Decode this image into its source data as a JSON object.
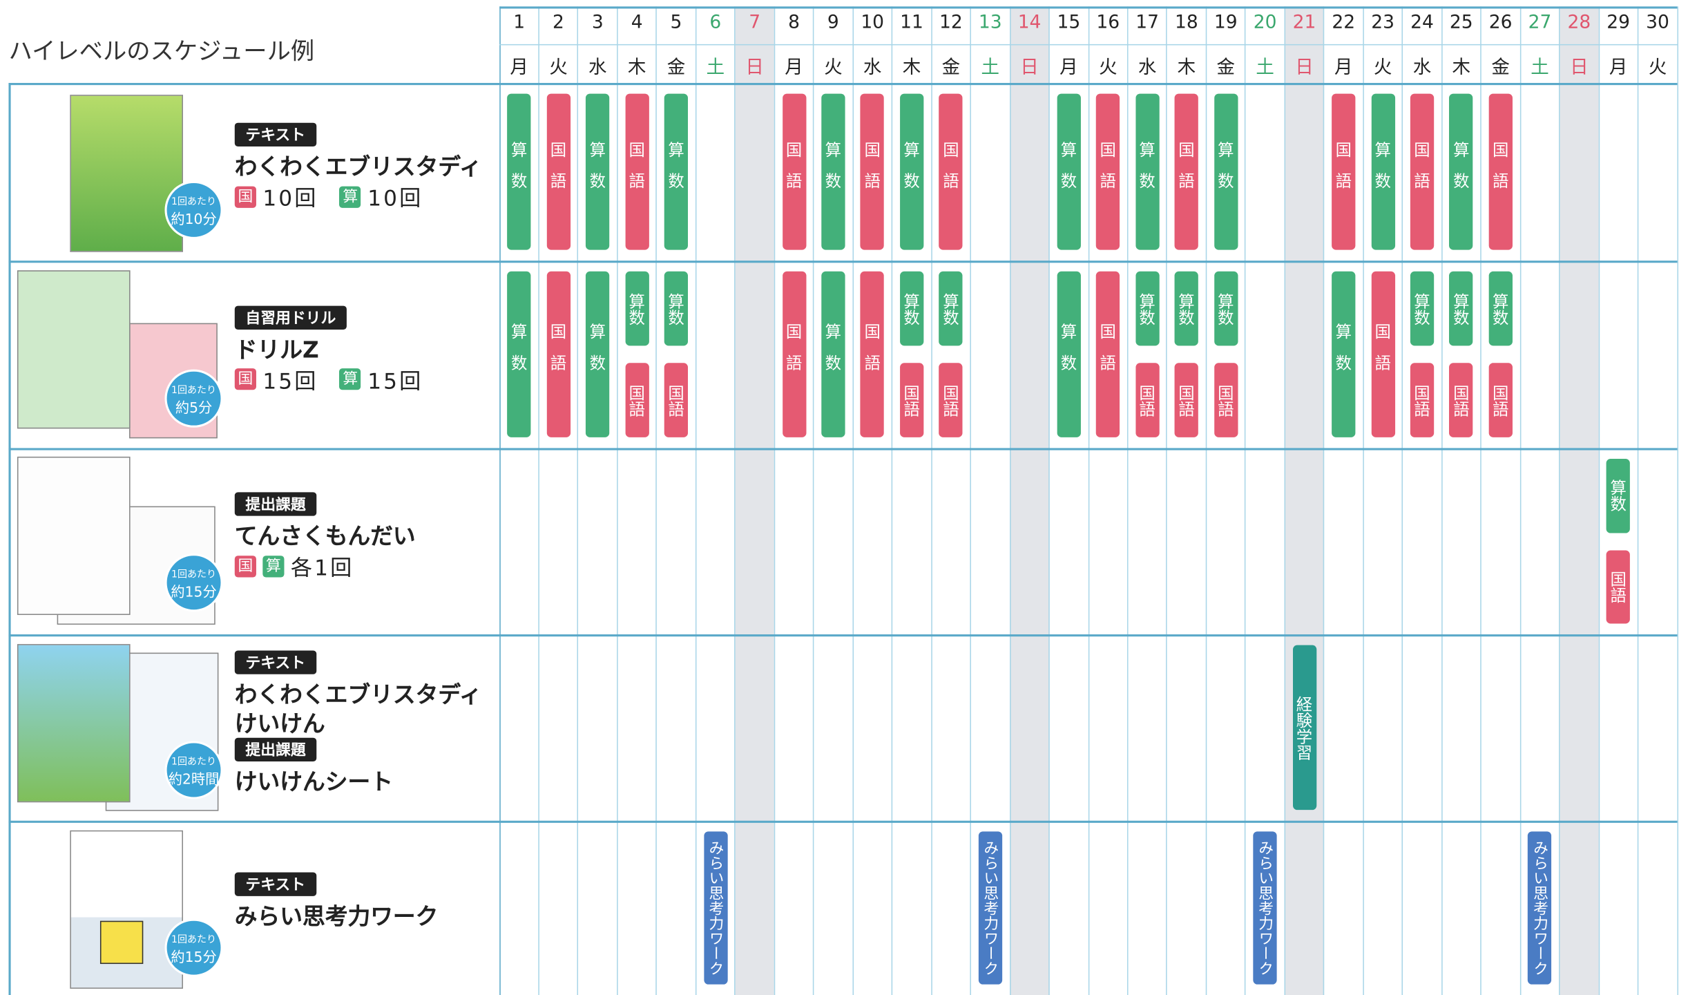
{
  "title": "ハイレベルのスケジュール例",
  "days": [
    {
      "date": 1,
      "weekday": "月",
      "color": "#222222"
    },
    {
      "date": 2,
      "weekday": "火",
      "color": "#222222"
    },
    {
      "date": 3,
      "weekday": "水",
      "color": "#222222"
    },
    {
      "date": 4,
      "weekday": "木",
      "color": "#222222"
    },
    {
      "date": 5,
      "weekday": "金",
      "color": "#222222"
    },
    {
      "date": 6,
      "weekday": "土",
      "color": "#3aa76d"
    },
    {
      "date": 7,
      "weekday": "日",
      "color": "#e0566e",
      "shade": true
    },
    {
      "date": 8,
      "weekday": "月",
      "color": "#222222"
    },
    {
      "date": 9,
      "weekday": "火",
      "color": "#222222"
    },
    {
      "date": 10,
      "weekday": "水",
      "color": "#222222"
    },
    {
      "date": 11,
      "weekday": "木",
      "color": "#222222"
    },
    {
      "date": 12,
      "weekday": "金",
      "color": "#222222"
    },
    {
      "date": 13,
      "weekday": "土",
      "color": "#3aa76d"
    },
    {
      "date": 14,
      "weekday": "日",
      "color": "#e0566e",
      "shade": true
    },
    {
      "date": 15,
      "weekday": "月",
      "color": "#222222"
    },
    {
      "date": 16,
      "weekday": "火",
      "color": "#222222"
    },
    {
      "date": 17,
      "weekday": "水",
      "color": "#222222"
    },
    {
      "date": 18,
      "weekday": "木",
      "color": "#222222"
    },
    {
      "date": 19,
      "weekday": "金",
      "color": "#222222"
    },
    {
      "date": 20,
      "weekday": "土",
      "color": "#3aa76d"
    },
    {
      "date": 21,
      "weekday": "日",
      "color": "#e0566e",
      "shade": true
    },
    {
      "date": 22,
      "weekday": "月",
      "color": "#222222"
    },
    {
      "date": 23,
      "weekday": "火",
      "color": "#222222"
    },
    {
      "date": 24,
      "weekday": "水",
      "color": "#222222"
    },
    {
      "date": 25,
      "weekday": "木",
      "color": "#222222"
    },
    {
      "date": 26,
      "weekday": "金",
      "color": "#222222"
    },
    {
      "date": 27,
      "weekday": "土",
      "color": "#3aa76d"
    },
    {
      "date": 28,
      "weekday": "日",
      "color": "#e0566e",
      "shade": true
    },
    {
      "date": 29,
      "weekday": "月",
      "color": "#222222"
    },
    {
      "date": 30,
      "weekday": "火",
      "color": "#222222"
    }
  ],
  "rows": [
    {
      "info": [
        {
          "tag": "テキスト"
        },
        {
          "name": "わくわくエブリスタディ"
        },
        {
          "counts": [
            {
              "badge": "国",
              "color": "#e0566e"
            },
            {
              "text": "10回"
            },
            {
              "badge": "算",
              "color": "#43b07a"
            },
            {
              "text": "10回"
            }
          ]
        }
      ],
      "per_time": [
        "1回あたり",
        "約10分"
      ],
      "events": [
        {
          "day": 1,
          "label": "算数",
          "color": "#43b07a"
        },
        {
          "day": 2,
          "label": "国語",
          "color": "#e55a72"
        },
        {
          "day": 3,
          "label": "算数",
          "color": "#43b07a"
        },
        {
          "day": 4,
          "label": "国語",
          "color": "#e55a72"
        },
        {
          "day": 5,
          "label": "算数",
          "color": "#43b07a"
        },
        {
          "day": 8,
          "label": "国語",
          "color": "#e55a72"
        },
        {
          "day": 9,
          "label": "算数",
          "color": "#43b07a"
        },
        {
          "day": 10,
          "label": "国語",
          "color": "#e55a72"
        },
        {
          "day": 11,
          "label": "算数",
          "color": "#43b07a"
        },
        {
          "day": 12,
          "label": "国語",
          "color": "#e55a72"
        },
        {
          "day": 15,
          "label": "算数",
          "color": "#43b07a"
        },
        {
          "day": 16,
          "label": "国語",
          "color": "#e55a72"
        },
        {
          "day": 17,
          "label": "算数",
          "color": "#43b07a"
        },
        {
          "day": 18,
          "label": "国語",
          "color": "#e55a72"
        },
        {
          "day": 19,
          "label": "算数",
          "color": "#43b07a"
        },
        {
          "day": 22,
          "label": "国語",
          "color": "#e55a72"
        },
        {
          "day": 23,
          "label": "算数",
          "color": "#43b07a"
        },
        {
          "day": 24,
          "label": "国語",
          "color": "#e55a72"
        },
        {
          "day": 25,
          "label": "算数",
          "color": "#43b07a"
        },
        {
          "day": 26,
          "label": "国語",
          "color": "#e55a72"
        }
      ]
    },
    {
      "info": [
        {
          "tag": "自習用ドリル"
        },
        {
          "name": "ドリルZ"
        },
        {
          "counts": [
            {
              "badge": "国",
              "color": "#e0566e"
            },
            {
              "text": "15回"
            },
            {
              "badge": "算",
              "color": "#43b07a"
            },
            {
              "text": "15回"
            }
          ]
        }
      ],
      "per_time": [
        "1回あたり",
        "約5分"
      ],
      "events": [
        {
          "day": 1,
          "label": "算数",
          "color": "#43b07a"
        },
        {
          "day": 2,
          "label": "国語",
          "color": "#e55a72"
        },
        {
          "day": 3,
          "label": "算数",
          "color": "#43b07a"
        },
        {
          "day": 4,
          "label": "算数",
          "color": "#43b07a"
        },
        {
          "day": 4,
          "label": "国語",
          "color": "#e55a72"
        },
        {
          "day": 5,
          "label": "算数",
          "color": "#43b07a"
        },
        {
          "day": 5,
          "label": "国語",
          "color": "#e55a72"
        },
        {
          "day": 8,
          "label": "国語",
          "color": "#e55a72"
        },
        {
          "day": 9,
          "label": "算数",
          "color": "#43b07a"
        },
        {
          "day": 10,
          "label": "国語",
          "color": "#e55a72"
        },
        {
          "day": 11,
          "label": "算数",
          "color": "#43b07a"
        },
        {
          "day": 11,
          "label": "国語",
          "color": "#e55a72"
        },
        {
          "day": 12,
          "label": "算数",
          "color": "#43b07a"
        },
        {
          "day": 12,
          "label": "国語",
          "color": "#e55a72"
        },
        {
          "day": 15,
          "label": "算数",
          "color": "#43b07a"
        },
        {
          "day": 16,
          "label": "国語",
          "color": "#e55a72"
        },
        {
          "day": 17,
          "label": "算数",
          "color": "#43b07a"
        },
        {
          "day": 17,
          "label": "国語",
          "color": "#e55a72"
        },
        {
          "day": 18,
          "label": "算数",
          "color": "#43b07a"
        },
        {
          "day": 18,
          "label": "国語",
          "color": "#e55a72"
        },
        {
          "day": 19,
          "label": "算数",
          "color": "#43b07a"
        },
        {
          "day": 19,
          "label": "国語",
          "color": "#e55a72"
        },
        {
          "day": 22,
          "label": "算数",
          "color": "#43b07a"
        },
        {
          "day": 23,
          "label": "国語",
          "color": "#e55a72"
        },
        {
          "day": 24,
          "label": "算数",
          "color": "#43b07a"
        },
        {
          "day": 24,
          "label": "国語",
          "color": "#e55a72"
        },
        {
          "day": 25,
          "label": "算数",
          "color": "#43b07a"
        },
        {
          "day": 25,
          "label": "国語",
          "color": "#e55a72"
        },
        {
          "day": 26,
          "label": "算数",
          "color": "#43b07a"
        },
        {
          "day": 26,
          "label": "国語",
          "color": "#e55a72"
        }
      ]
    },
    {
      "info": [
        {
          "tag": "提出課題"
        },
        {
          "name": "てんさくもんだい"
        },
        {
          "counts": [
            {
              "badge": "国",
              "color": "#e0566e"
            },
            {
              "badge": "算",
              "color": "#43b07a"
            },
            {
              "text": "各1回"
            }
          ]
        }
      ],
      "per_time": [
        "1回あたり",
        "約15分"
      ],
      "events": [
        {
          "day": 29,
          "label": "算数",
          "color": "#43b07a"
        },
        {
          "day": 29,
          "label": "国語",
          "color": "#e55a72"
        }
      ]
    },
    {
      "info": [
        {
          "tag": "テキスト"
        },
        {
          "name": "わくわくエブリスタディ"
        },
        {
          "name": "けいけん"
        },
        {
          "tag": "提出課題"
        },
        {
          "name": "けいけんシート"
        }
      ],
      "per_time": [
        "1回あたり",
        "約2時間"
      ],
      "events": [
        {
          "day": 21,
          "label": "経験学習",
          "color": "#2a9a8e"
        }
      ]
    },
    {
      "info": [
        {
          "tag": "テキスト"
        },
        {
          "name": "みらい思考力ワーク"
        }
      ],
      "per_time": [
        "1回あたり",
        "約15分"
      ],
      "events": [
        {
          "day": 6,
          "label": "みらい思考力ワーク",
          "color": "#4a7cc4"
        },
        {
          "day": 13,
          "label": "みらい思考力ワーク",
          "color": "#4a7cc4"
        },
        {
          "day": 20,
          "label": "みらい思考力ワーク",
          "color": "#4a7cc4"
        },
        {
          "day": 27,
          "label": "みらい思考力ワーク",
          "color": "#4a7cc4"
        }
      ]
    }
  ]
}
